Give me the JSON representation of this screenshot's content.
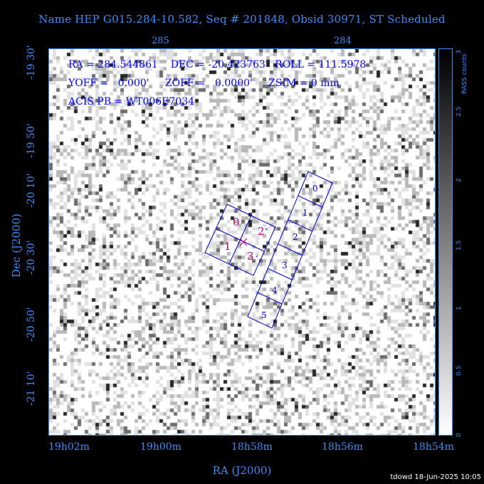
{
  "title": "Name HEP G015.284-10.582, Seq # 201848, Obsid 30971, ST Scheduled",
  "info": {
    "line1": "RA = 284.544861    DEC = -20.423763   ROLL = 111.5978",
    "line2": "YOFF =   0.000'     ZOFF =   0.0000'     ZSIM = 0 mm",
    "line3": "ACIS PB = WT006E7034"
  },
  "axes": {
    "xlabel": "RA (J2000)",
    "ylabel": "Dec (J2000)",
    "x_ticks": [
      "19h02m",
      "19h00m",
      "18h58m",
      "18h56m",
      "18h54m"
    ],
    "x_ticks_top": [
      "285",
      "284"
    ],
    "y_ticks": [
      "-19 30'",
      "-19 50'",
      "-20 10'",
      "-20 30'",
      "-20 50'",
      "-21 10'"
    ]
  },
  "colorbar": {
    "label": "RASS counts",
    "ticks": [
      "0",
      "0.5",
      "1",
      "1.5",
      "2",
      "2.5",
      "3"
    ]
  },
  "ccds": {
    "aci": [
      "0",
      "1",
      "2",
      "3"
    ],
    "acis": [
      "0",
      "1",
      "2",
      "3",
      "4",
      "5"
    ]
  },
  "footer": "tdowd 18-Jun-2025 10:05"
}
